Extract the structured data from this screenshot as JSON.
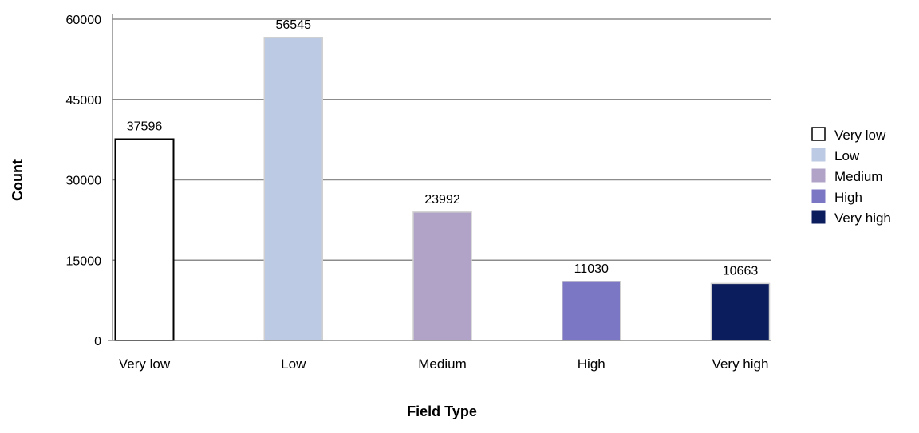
{
  "chart_data": {
    "type": "bar",
    "categories": [
      "Very low",
      "Low",
      "Medium",
      "High",
      "Very high"
    ],
    "values": [
      37596,
      56545,
      23992,
      11030,
      10663
    ],
    "data_labels": [
      "37596",
      "56545",
      "23992",
      "11030",
      "10663"
    ],
    "colors": [
      "#ffffff",
      "#bccbe3",
      "#b1a3c7",
      "#7c77c4",
      "#0b1d5c"
    ],
    "bar_strokes": [
      "#000000",
      "#d0d0d0",
      "#d0d0d0",
      "#d0d0d0",
      "#d0d0d0"
    ],
    "xlabel": "Field Type",
    "ylabel": "Count",
    "ylim": [
      0,
      60000
    ],
    "yticks": [
      0,
      15000,
      30000,
      45000,
      60000
    ],
    "ytick_labels": [
      "0",
      "15000",
      "30000",
      "45000",
      "60000"
    ],
    "grid": true,
    "legend": {
      "position": "right",
      "entries": [
        "Very low",
        "Low",
        "Medium",
        "High",
        "Very high"
      ]
    }
  }
}
